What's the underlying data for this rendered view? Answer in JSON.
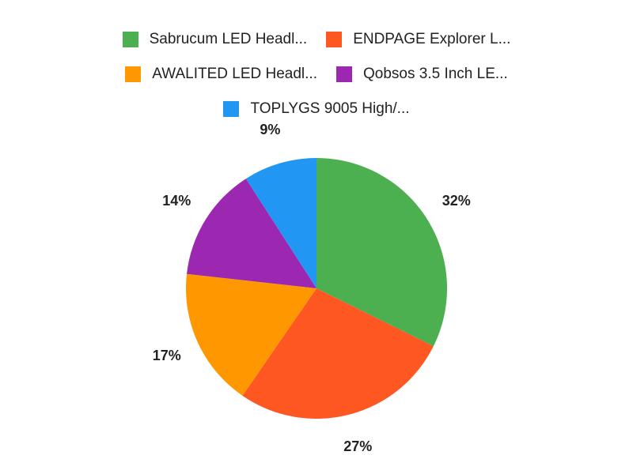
{
  "chart_data": {
    "type": "pie",
    "title": "",
    "series": [
      {
        "name": "Sabrucum LED Headl...",
        "value": 32,
        "label": "32%",
        "color": "#4caf50"
      },
      {
        "name": "ENDPAGE Explorer L...",
        "value": 27,
        "label": "27%",
        "color": "#ff5722"
      },
      {
        "name": "AWALITED LED Headl...",
        "value": 17,
        "label": "17%",
        "color": "#ff9800"
      },
      {
        "name": "Qobsos 3.5 Inch LE...",
        "value": 14,
        "label": "14%",
        "color": "#9c27b0"
      },
      {
        "name": "TOPLYGS 9005 High/...",
        "value": 9,
        "label": "9%",
        "color": "#2196f3"
      }
    ],
    "legend_position": "top",
    "start_angle": "top, clockwise"
  }
}
